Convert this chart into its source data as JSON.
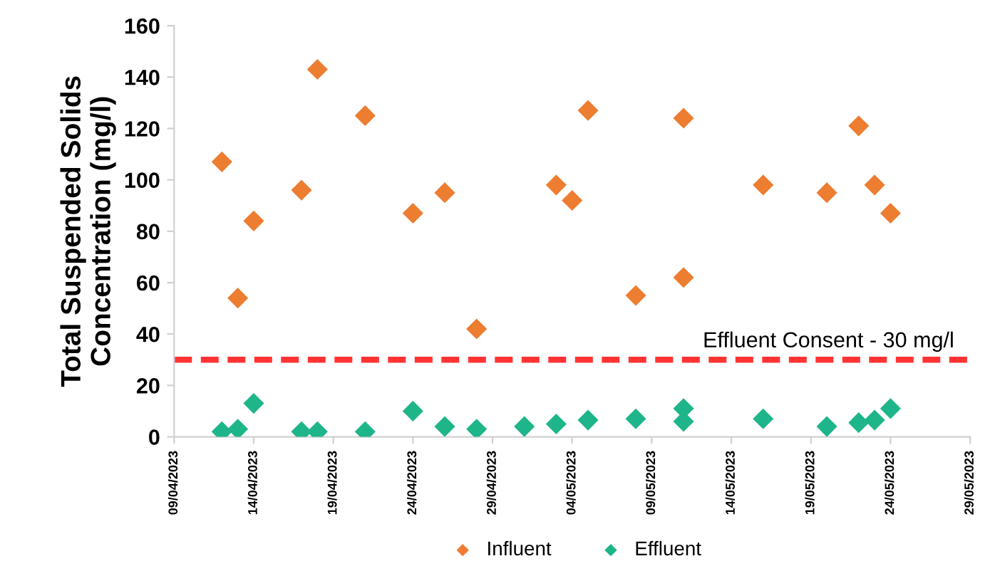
{
  "chart_data": {
    "type": "scatter",
    "ylabel": "Total Suspended Solids\nConcentration (mg/l)",
    "x": [
      "2023-04-12",
      "2023-04-13",
      "2023-04-14",
      "2023-04-17",
      "2023-04-18",
      "2023-04-21",
      "2023-04-24",
      "2023-04-26",
      "2023-04-28",
      "2023-05-03",
      "2023-05-04",
      "2023-05-05",
      "2023-05-08",
      "2023-05-11",
      "2023-05-11",
      "2023-05-16",
      "2023-05-20",
      "2023-05-22",
      "2023-05-23",
      "2023-05-24"
    ],
    "series": [
      {
        "name": "Influent",
        "color": "#ed7d31",
        "values": [
          107,
          54,
          84,
          96,
          143,
          125,
          87,
          95,
          42,
          98,
          92,
          127,
          55,
          124,
          62,
          98,
          95,
          121,
          98,
          87
        ]
      },
      {
        "name": "Effluent",
        "color": "#1fb58a",
        "x": [
          "2023-04-12",
          "2023-04-13",
          "2023-04-14",
          "2023-04-17",
          "2023-04-18",
          "2023-04-21",
          "2023-04-24",
          "2023-04-26",
          "2023-04-28",
          "2023-05-01",
          "2023-05-03",
          "2023-05-05",
          "2023-05-08",
          "2023-05-11",
          "2023-05-11",
          "2023-05-16",
          "2023-05-20",
          "2023-05-22",
          "2023-05-23",
          "2023-05-24"
        ],
        "values": [
          2,
          3,
          13,
          2,
          2,
          2,
          10,
          4,
          3,
          4,
          5,
          6.5,
          7,
          6,
          11,
          7,
          4,
          5.5,
          6.5,
          11
        ]
      }
    ],
    "marker": "diamond",
    "grid": false,
    "legend": "bottom",
    "ylim": [
      0,
      160
    ],
    "yticks": [
      0,
      20,
      40,
      60,
      80,
      100,
      120,
      140,
      160
    ],
    "xlim": [
      "2023-04-09",
      "2023-05-29"
    ],
    "xticks": [
      {
        "value": "2023-04-09",
        "label": "09/04/2023"
      },
      {
        "value": "2023-04-14",
        "label": "14/04/2023"
      },
      {
        "value": "2023-04-19",
        "label": "19/04/2023"
      },
      {
        "value": "2023-04-24",
        "label": "24/04/2023"
      },
      {
        "value": "2023-04-29",
        "label": "29/04/2023"
      },
      {
        "value": "2023-05-04",
        "label": "04/05/2023"
      },
      {
        "value": "2023-05-09",
        "label": "09/05/2023"
      },
      {
        "value": "2023-05-14",
        "label": "14/05/2023"
      },
      {
        "value": "2023-05-19",
        "label": "19/05/2023"
      },
      {
        "value": "2023-05-24",
        "label": "24/05/2023"
      },
      {
        "value": "2023-05-29",
        "label": "29/05/2023"
      }
    ],
    "ref_lines": [
      {
        "axis": "y",
        "value": 30,
        "label": "Effluent Consent - 30 mg/l",
        "color": "#ff3333",
        "line_style": "dashed"
      }
    ]
  }
}
